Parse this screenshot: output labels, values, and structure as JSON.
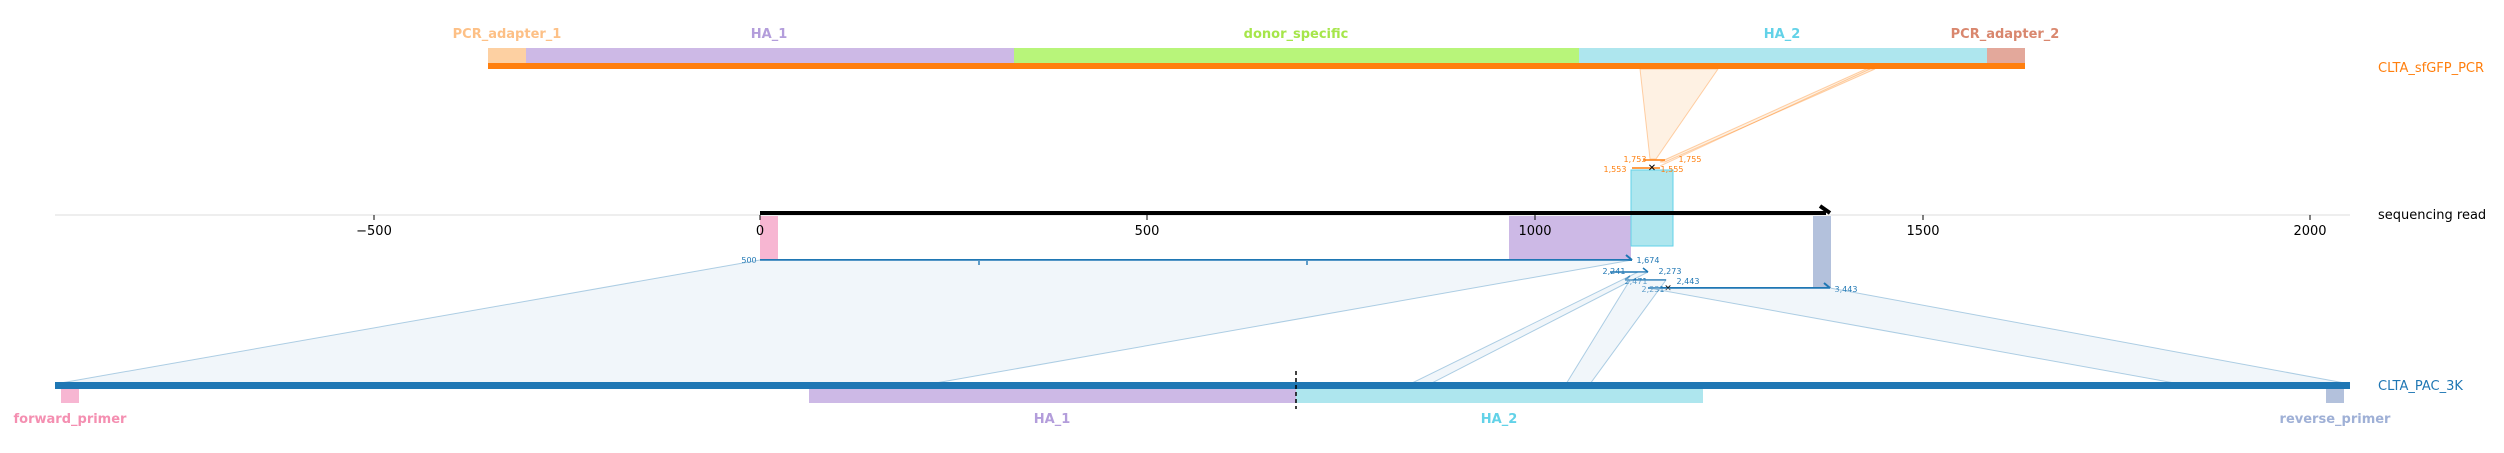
{
  "top_construct": {
    "name": "CLTA_sfGFP_PCR",
    "color": "#ff7f0e",
    "features": [
      {
        "label": "PCR_adapter_1",
        "color": "#fdd0a2",
        "text_color": "#fdc086"
      },
      {
        "label": "HA_1",
        "color": "#cdb9e6",
        "text_color": "#b39ddb"
      },
      {
        "label": "donor_specific",
        "color": "#b8f57a",
        "text_color": "#a6e64a"
      },
      {
        "label": "HA_2",
        "color": "#aee6ee",
        "text_color": "#62d2e8"
      },
      {
        "label": "PCR_adapter_2",
        "color": "#e3a89b",
        "text_color": "#d9876e"
      }
    ]
  },
  "read": {
    "name": "sequencing read",
    "axis_ticks": [
      "−500",
      "0",
      "500",
      "1000",
      "1500",
      "2000"
    ],
    "top_alignment_labels": [
      "1,753",
      "1,755",
      "1,553",
      "1,555"
    ],
    "bottom_alignment_labels": [
      "500",
      "1,674",
      "2,241",
      "2,273",
      "2,471",
      "2,443",
      "2,231",
      "3,443"
    ]
  },
  "bottom_construct": {
    "name": "CLTA_PAC_3K",
    "color": "#1f77b4",
    "features": [
      {
        "label": "forward_primer",
        "color": "#f7b6d2",
        "text_color": "#f48fb1"
      },
      {
        "label": "HA_1",
        "color": "#cdb9e6",
        "text_color": "#b39ddb"
      },
      {
        "label": "HA_2",
        "color": "#aee6ee",
        "text_color": "#62d2e8"
      },
      {
        "label": "reverse_primer",
        "color": "#b3c1dc",
        "text_color": "#9fb0d6"
      }
    ]
  }
}
